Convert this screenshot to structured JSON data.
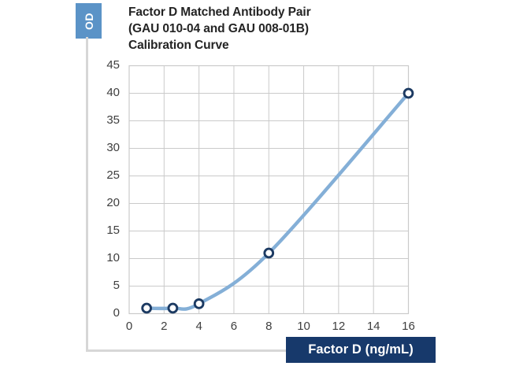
{
  "title": {
    "lines": [
      "Factor D Matched Antibody Pair",
      "(GAU 010-04 and GAU 008-01B)",
      "Calibration Curve"
    ]
  },
  "y_axis_box": {
    "label": "OD",
    "bg_color": "#5b93c7"
  },
  "x_axis_box": {
    "label": "Factor D (ng/mL)",
    "bg_color": "#17396b"
  },
  "chart_data": {
    "type": "line",
    "title": "Factor D Matched Antibody Pair (GAU 010-04 and GAU 008-01B) Calibration Curve",
    "xlabel": "Factor D (ng/mL)",
    "ylabel": "OD",
    "x": [
      1,
      2.5,
      4,
      8,
      16
    ],
    "y": [
      1,
      1,
      1.8,
      11,
      40
    ],
    "xlim": [
      0,
      16
    ],
    "ylim": [
      0,
      45
    ],
    "x_ticks": [
      0,
      2,
      4,
      6,
      8,
      10,
      12,
      14,
      16
    ],
    "y_ticks": [
      0,
      5,
      10,
      15,
      20,
      25,
      30,
      35,
      40,
      45
    ],
    "grid": true,
    "legend": false,
    "line_color": "#84afd7",
    "line_width": 4.4,
    "marker_style": "open-circle",
    "marker_fill": "#ffffff",
    "marker_stroke_color": "#1c3a62",
    "marker_radius": 5.4,
    "marker_stroke_width": 2.9,
    "grid_color": "#cacaca",
    "tick_label_color": "#3e3e3e"
  }
}
